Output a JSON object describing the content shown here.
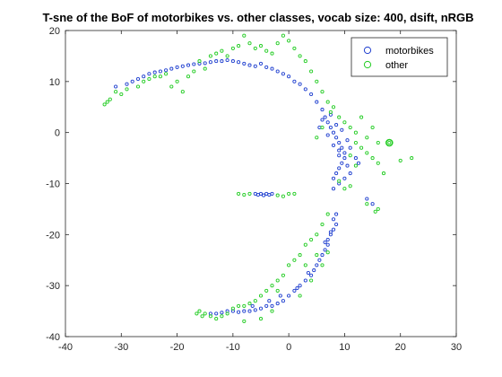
{
  "chart_data": {
    "type": "scatter",
    "title": "T-sne of the BoF of motorbikes vs. other classes, vocab size: 400, dsift, nRGB",
    "xlabel": "",
    "ylabel": "",
    "xlim": [
      -40,
      30
    ],
    "ylim": [
      -40,
      20
    ],
    "xticks": [
      -40,
      -30,
      -20,
      -10,
      0,
      10,
      20,
      30
    ],
    "yticks": [
      -40,
      -30,
      -20,
      -10,
      0,
      10,
      20
    ],
    "xtick_labels": [
      "-40",
      "-30",
      "-20",
      "-10",
      "0",
      "10",
      "20",
      "30"
    ],
    "ytick_labels": [
      "-40",
      "-30",
      "-20",
      "-10",
      "0",
      "10",
      "20"
    ],
    "grid": false,
    "legend_position": "top-right",
    "series": [
      {
        "name": "motorbikes",
        "color": "#1f3fcf",
        "marker": "open-circle",
        "points": [
          [
            -31,
            9
          ],
          [
            -29,
            9.5
          ],
          [
            -28,
            10
          ],
          [
            -27,
            10.5
          ],
          [
            -26,
            11
          ],
          [
            -25,
            11.5
          ],
          [
            -24,
            11.8
          ],
          [
            -23,
            12
          ],
          [
            -22,
            12.2
          ],
          [
            -21,
            12.5
          ],
          [
            -20,
            12.8
          ],
          [
            -19,
            13
          ],
          [
            -18,
            13.2
          ],
          [
            -17,
            13.4
          ],
          [
            -16,
            13.5
          ],
          [
            -15,
            13.6
          ],
          [
            -14,
            13.8
          ],
          [
            -13,
            14
          ],
          [
            -12,
            14
          ],
          [
            -11,
            14.2
          ],
          [
            -10,
            14
          ],
          [
            -9,
            13.8
          ],
          [
            -8,
            13.5
          ],
          [
            -7,
            13.2
          ],
          [
            -6,
            13
          ],
          [
            -5,
            13.5
          ],
          [
            -4,
            12.8
          ],
          [
            -3,
            12.5
          ],
          [
            -2,
            12
          ],
          [
            -1,
            11.5
          ],
          [
            0,
            11
          ],
          [
            1,
            10
          ],
          [
            2,
            9.5
          ],
          [
            3,
            8.5
          ],
          [
            4,
            7.5
          ],
          [
            5,
            6
          ],
          [
            6,
            4.5
          ],
          [
            6.5,
            3
          ],
          [
            7,
            2
          ],
          [
            7.5,
            1
          ],
          [
            8,
            0
          ],
          [
            8.5,
            -1
          ],
          [
            9,
            -2
          ],
          [
            9.5,
            -3
          ],
          [
            10,
            -4
          ],
          [
            10,
            -5
          ],
          [
            9.5,
            -6
          ],
          [
            9,
            -7
          ],
          [
            8.5,
            -8
          ],
          [
            8,
            -9
          ],
          [
            9,
            -3.5
          ],
          [
            8,
            -2.5
          ],
          [
            7,
            -0.5
          ],
          [
            9.5,
            0.5
          ],
          [
            10.5,
            -1.5
          ],
          [
            11,
            -3
          ],
          [
            10.5,
            -6.5
          ],
          [
            9,
            -4.5
          ],
          [
            8.5,
            1.5
          ],
          [
            7.5,
            3.5
          ],
          [
            6,
            2.5
          ],
          [
            5.5,
            1
          ],
          [
            11,
            -8
          ],
          [
            10,
            -9
          ],
          [
            9,
            -10
          ],
          [
            8,
            -11
          ],
          [
            12,
            -5
          ],
          [
            12.5,
            -6
          ],
          [
            14,
            -13
          ],
          [
            15,
            -14
          ],
          [
            -6,
            -12
          ],
          [
            -5.5,
            -12.2
          ],
          [
            -5,
            -12
          ],
          [
            -4.5,
            -12.3
          ],
          [
            -4,
            -12
          ],
          [
            -3.5,
            -12.2
          ],
          [
            -3,
            -12
          ],
          [
            8,
            -17
          ],
          [
            8.5,
            -18
          ],
          [
            8,
            -19
          ],
          [
            7.5,
            -20
          ],
          [
            7,
            -21
          ],
          [
            7,
            -22
          ],
          [
            6.5,
            -23
          ],
          [
            6,
            -24
          ],
          [
            5.5,
            -25
          ],
          [
            5,
            -26
          ],
          [
            4.5,
            -27
          ],
          [
            4,
            -28
          ],
          [
            3,
            -29
          ],
          [
            2,
            -30
          ],
          [
            1,
            -31
          ],
          [
            0,
            -32
          ],
          [
            -1,
            -33
          ],
          [
            -2,
            -33.5
          ],
          [
            -3,
            -34
          ],
          [
            -4,
            -34
          ],
          [
            -5,
            -34.5
          ],
          [
            -6,
            -34.8
          ],
          [
            -7,
            -35
          ],
          [
            -8,
            -35
          ],
          [
            -9,
            -35.2
          ],
          [
            -10,
            -35
          ],
          [
            -11,
            -35
          ],
          [
            -12,
            -35.3
          ],
          [
            -13,
            -35.5
          ],
          [
            -14,
            -35.5
          ],
          [
            8.5,
            -16
          ],
          [
            7.5,
            -19.5
          ],
          [
            6.5,
            -21.5
          ],
          [
            3.5,
            -27.5
          ],
          [
            1.5,
            -30.5
          ],
          [
            -1.5,
            -32
          ],
          [
            -3.5,
            -33
          ],
          [
            -6.5,
            -34
          ]
        ]
      },
      {
        "name": "other",
        "color": "#22cc22",
        "marker": "open-circle",
        "points": [
          [
            -33,
            5.5
          ],
          [
            -32.5,
            6
          ],
          [
            -32,
            6.5
          ],
          [
            -31,
            8
          ],
          [
            -30,
            7.5
          ],
          [
            -29,
            8.5
          ],
          [
            -27,
            9
          ],
          [
            -26,
            10
          ],
          [
            -25,
            10.5
          ],
          [
            -24,
            11
          ],
          [
            -23,
            11
          ],
          [
            -22,
            11.5
          ],
          [
            -21,
            9
          ],
          [
            -20,
            10
          ],
          [
            -19,
            8
          ],
          [
            -18,
            11
          ],
          [
            -17,
            12
          ],
          [
            -16,
            14
          ],
          [
            -15,
            12.5
          ],
          [
            -14,
            15
          ],
          [
            -13,
            15.5
          ],
          [
            -12,
            16
          ],
          [
            -11,
            15
          ],
          [
            -10,
            16.5
          ],
          [
            -9,
            17
          ],
          [
            -8,
            19
          ],
          [
            -7,
            17.5
          ],
          [
            -6,
            16.5
          ],
          [
            -5,
            17
          ],
          [
            -4,
            16
          ],
          [
            -3,
            15.5
          ],
          [
            -2,
            17.5
          ],
          [
            -1,
            19
          ],
          [
            0,
            18
          ],
          [
            1,
            16.5
          ],
          [
            2,
            15
          ],
          [
            3,
            14
          ],
          [
            4,
            12
          ],
          [
            5,
            10
          ],
          [
            6,
            8
          ],
          [
            7,
            6
          ],
          [
            7.5,
            4
          ],
          [
            8,
            5
          ],
          [
            9,
            3
          ],
          [
            10,
            2
          ],
          [
            11,
            1
          ],
          [
            12,
            0
          ],
          [
            12,
            -2
          ],
          [
            13,
            -3
          ],
          [
            14,
            -4
          ],
          [
            15,
            -5
          ],
          [
            16,
            -6
          ],
          [
            17,
            -8
          ],
          [
            18,
            -2
          ],
          [
            20,
            -5.5
          ],
          [
            22,
            -5
          ],
          [
            14,
            -1
          ],
          [
            15,
            1
          ],
          [
            16,
            -2
          ],
          [
            13,
            3
          ],
          [
            6,
            1
          ],
          [
            5,
            -1
          ],
          [
            9,
            -9.5
          ],
          [
            10,
            -11
          ],
          [
            11,
            -10.5
          ],
          [
            14,
            -14
          ],
          [
            16,
            -15
          ],
          [
            15.5,
            -15.5
          ],
          [
            12,
            -6.5
          ],
          [
            11,
            -4.5
          ],
          [
            -9,
            -12
          ],
          [
            -8,
            -12.2
          ],
          [
            -7,
            -12
          ],
          [
            -2,
            -12.3
          ],
          [
            -1,
            -12.5
          ],
          [
            0,
            -12
          ],
          [
            1,
            -12
          ],
          [
            7,
            -16
          ],
          [
            6,
            -18
          ],
          [
            5,
            -20
          ],
          [
            4,
            -21
          ],
          [
            3,
            -22
          ],
          [
            2,
            -24
          ],
          [
            1,
            -25
          ],
          [
            0,
            -26
          ],
          [
            -1,
            -28
          ],
          [
            -2,
            -29
          ],
          [
            -3,
            -30
          ],
          [
            -4,
            -31
          ],
          [
            -5,
            -32
          ],
          [
            -6,
            -33
          ],
          [
            -7,
            -33.5
          ],
          [
            -8,
            -34
          ],
          [
            -9,
            -34
          ],
          [
            -10,
            -34.5
          ],
          [
            -11,
            -35.5
          ],
          [
            -12,
            -36
          ],
          [
            -13,
            -36.5
          ],
          [
            -14,
            -36
          ],
          [
            -15,
            -35.5
          ],
          [
            -16,
            -35
          ],
          [
            -16.5,
            -35.5
          ],
          [
            -15.5,
            -36
          ],
          [
            -8,
            -37
          ],
          [
            -5,
            -36.5
          ],
          [
            -3,
            -35
          ],
          [
            2,
            -32
          ],
          [
            4,
            -29
          ],
          [
            6,
            -26
          ],
          [
            7,
            -23.5
          ],
          [
            3,
            -26
          ],
          [
            5,
            -24
          ],
          [
            -2,
            -31
          ]
        ]
      }
    ],
    "highlight_point": {
      "x": 18,
      "y": -2
    }
  }
}
